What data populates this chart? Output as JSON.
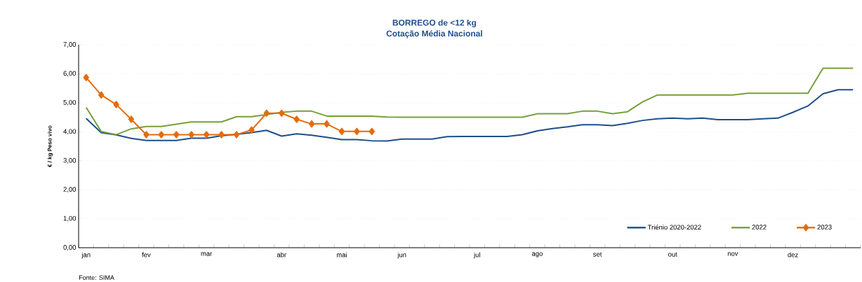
{
  "chart_data": {
    "type": "line",
    "title": "BORREGO de <12 kg",
    "subtitle": "Cotação Média Nacional",
    "ylabel": "€ / kg Peso vivo",
    "categories": [
      "jan",
      null,
      null,
      null,
      "fev",
      null,
      null,
      null,
      "mar",
      null,
      null,
      null,
      null,
      "abr",
      null,
      null,
      null,
      "mai",
      null,
      null,
      null,
      "jun",
      null,
      null,
      null,
      null,
      "jul",
      null,
      null,
      null,
      "ago",
      null,
      null,
      null,
      "set",
      null,
      null,
      null,
      null,
      "out",
      null,
      null,
      null,
      "nov",
      null,
      null,
      null,
      "dez",
      null,
      null,
      null,
      null
    ],
    "series": [
      {
        "name": "Triénio 2020-2022",
        "color": "#1f4e8c",
        "marker": "none",
        "values": [
          4.46,
          3.97,
          3.89,
          3.77,
          3.7,
          3.7,
          3.7,
          3.78,
          3.78,
          3.86,
          3.91,
          3.97,
          4.05,
          3.85,
          3.93,
          3.88,
          3.81,
          3.73,
          3.73,
          3.69,
          3.68,
          3.75,
          3.75,
          3.75,
          3.83,
          3.84,
          3.84,
          3.84,
          3.84,
          3.9,
          4.03,
          4.11,
          4.17,
          4.24,
          4.24,
          4.21,
          4.29,
          4.39,
          4.45,
          4.47,
          4.45,
          4.47,
          4.42,
          4.42,
          4.42,
          4.45,
          4.47,
          4.67,
          4.89,
          5.31,
          5.45,
          5.45
        ]
      },
      {
        "name": "2022",
        "color": "#77a03a",
        "marker": "none",
        "values": [
          4.84,
          4.01,
          3.9,
          4.1,
          4.18,
          4.18,
          4.26,
          4.34,
          4.34,
          4.34,
          4.52,
          4.52,
          4.59,
          4.67,
          4.71,
          4.71,
          4.54,
          4.54,
          4.54,
          4.54,
          4.51,
          4.5,
          4.5,
          4.5,
          4.5,
          4.5,
          4.5,
          4.5,
          4.5,
          4.5,
          4.62,
          4.62,
          4.62,
          4.71,
          4.71,
          4.62,
          4.69,
          5.03,
          5.27,
          5.27,
          5.27,
          5.27,
          5.27,
          5.27,
          5.33,
          5.33,
          5.33,
          5.33,
          5.33,
          6.19,
          6.19,
          6.19
        ]
      },
      {
        "name": "2023",
        "color": "#e46c0a",
        "marker": "diamond",
        "values": [
          5.87,
          5.27,
          4.94,
          4.43,
          3.9,
          3.9,
          3.9,
          3.9,
          3.9,
          3.9,
          3.9,
          4.06,
          4.64,
          4.64,
          4.43,
          4.27,
          4.27,
          4.01,
          4.01,
          4.01,
          null,
          null,
          null,
          null,
          null,
          null,
          null,
          null,
          null,
          null,
          null,
          null,
          null,
          null,
          null,
          null,
          null,
          null,
          null,
          null,
          null,
          null,
          null,
          null,
          null,
          null,
          null,
          null,
          null,
          null,
          null,
          null
        ]
      }
    ],
    "ylim": [
      0,
      7
    ],
    "yticks": [
      {
        "value": 0,
        "label": "0,00"
      },
      {
        "value": 1,
        "label": "1,00"
      },
      {
        "value": 2,
        "label": "2,00"
      },
      {
        "value": 3,
        "label": "3,00"
      },
      {
        "value": 4,
        "label": "4,00"
      },
      {
        "value": 5,
        "label": "5,00"
      },
      {
        "value": 6,
        "label": "6,00"
      },
      {
        "value": 7,
        "label": "7,00"
      }
    ],
    "grid": "y",
    "legend": "bottom right",
    "line_style": "solid",
    "annotations": [
      "Fonte: SIMA"
    ]
  }
}
